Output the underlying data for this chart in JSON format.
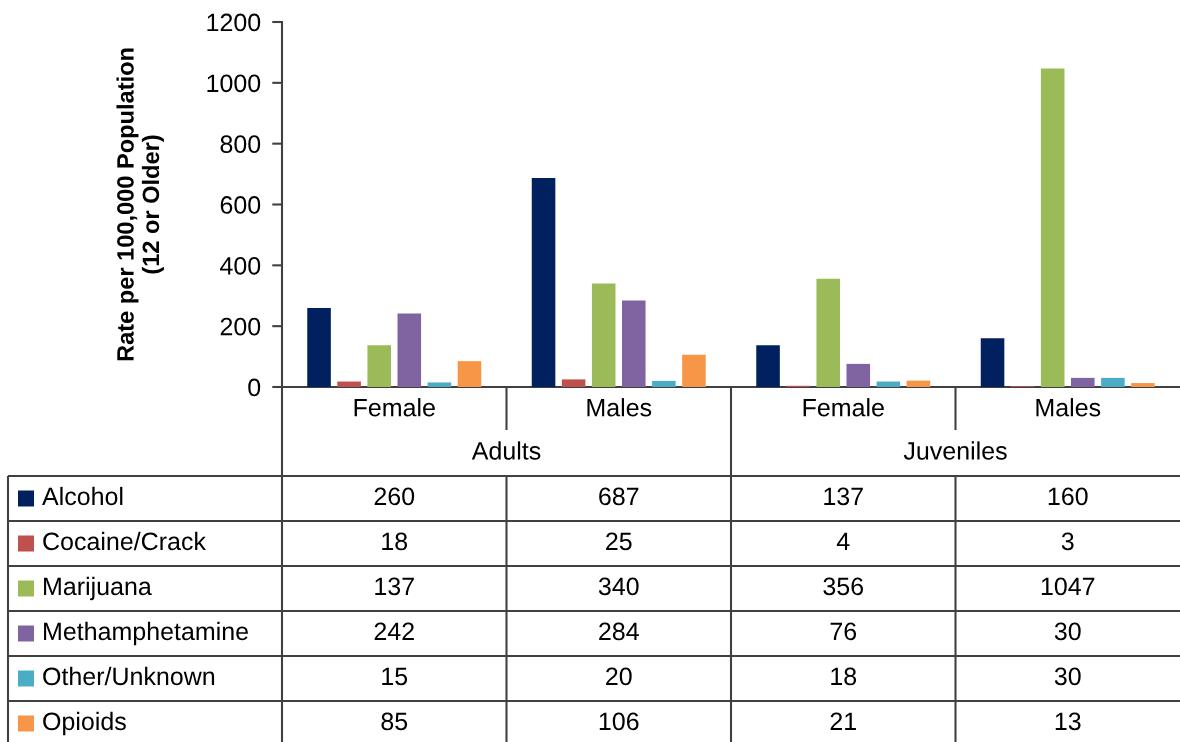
{
  "chart_data": {
    "type": "bar",
    "ylabel": "Rate per 100,000 Population\n(12 or Older)",
    "categories": [
      "Female",
      "Males",
      "Female",
      "Males"
    ],
    "annotations": [
      "Adults",
      "Juveniles"
    ],
    "series": [
      {
        "name": "Alcohol",
        "color": "#002060",
        "values": [
          260,
          687,
          137,
          160
        ]
      },
      {
        "name": "Cocaine/Crack",
        "color": "#c0504d",
        "values": [
          18,
          25,
          4,
          3
        ]
      },
      {
        "name": "Marijuana",
        "color": "#9bbb59",
        "values": [
          137,
          340,
          356,
          1047
        ]
      },
      {
        "name": "Methamphetamine",
        "color": "#8064a2",
        "values": [
          242,
          284,
          76,
          30
        ]
      },
      {
        "name": "Other/Unknown",
        "color": "#4bacc6",
        "values": [
          15,
          20,
          18,
          30
        ]
      },
      {
        "name": "Opioids",
        "color": "#f79646",
        "values": [
          85,
          106,
          21,
          13
        ]
      }
    ],
    "ylim": [
      0,
      1200
    ],
    "yticks": [
      0,
      200,
      400,
      600,
      800,
      1000,
      1200
    ],
    "data_labels": true,
    "legend": "bottom"
  }
}
